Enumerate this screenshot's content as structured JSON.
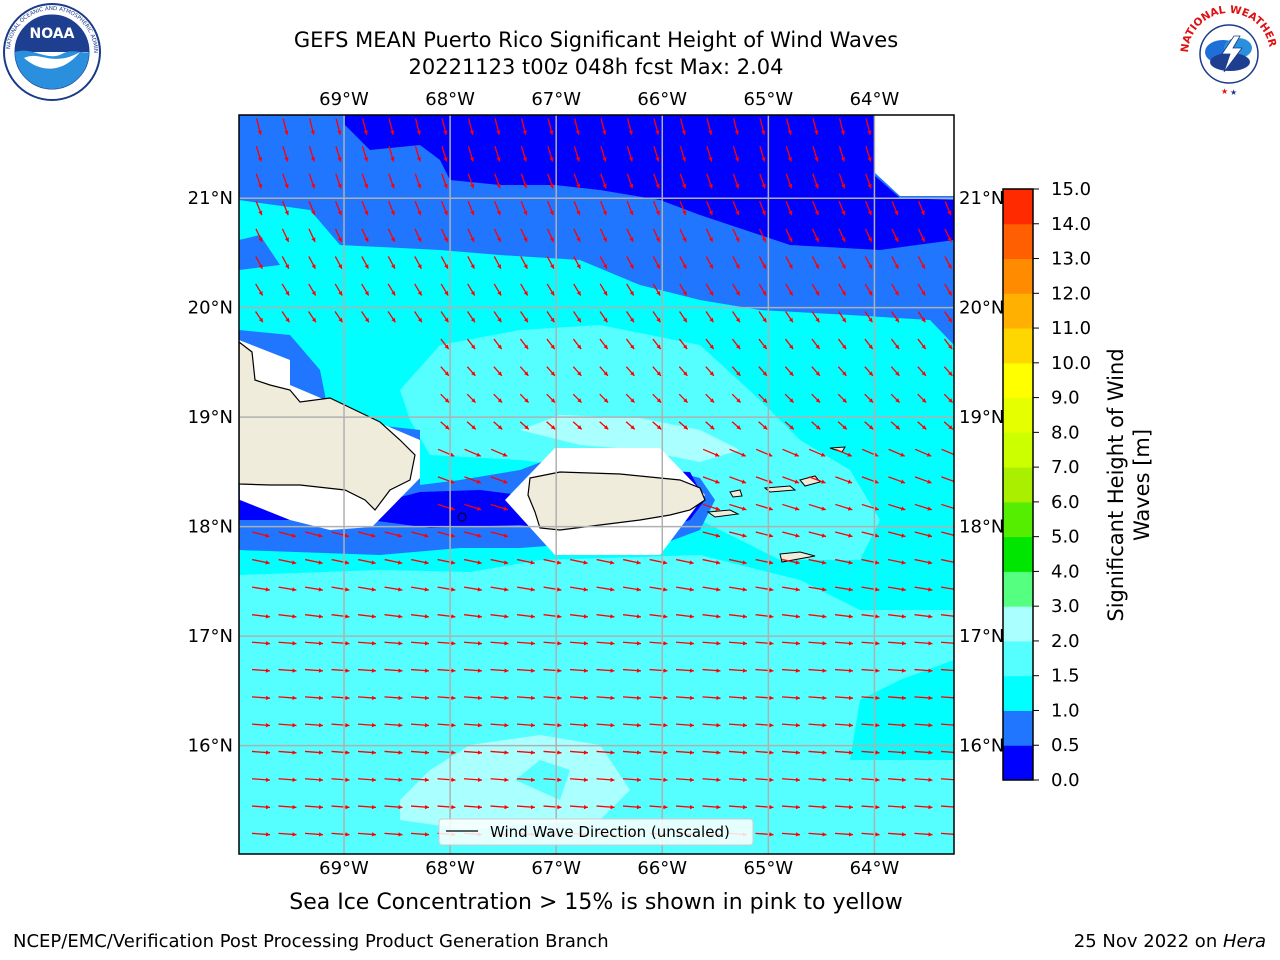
{
  "header": {
    "title_line1": "GEFS MEAN Puerto Rico Significant Height of Wind Waves",
    "title_line2": "20221123 t00z 048h fcst   Max: 2.04"
  },
  "logos": {
    "noaa": {
      "text": "NOAA",
      "ring_text": "NATIONAL OCEANIC AND ATMOSPHERIC ADMINISTRATION · U.S. DEPARTMENT OF COMMERCE ·"
    },
    "nws": {
      "ring_text": "NATIONAL WEATHER SERVICE"
    }
  },
  "map": {
    "lon_range": [
      -69.99,
      -63.25
    ],
    "lat_range": [
      15.01,
      21.76
    ],
    "lon_ticks": [
      {
        "value": -69,
        "label": "69°W"
      },
      {
        "value": -68,
        "label": "68°W"
      },
      {
        "value": -67,
        "label": "67°W"
      },
      {
        "value": -66,
        "label": "66°W"
      },
      {
        "value": -65,
        "label": "65°W"
      },
      {
        "value": -64,
        "label": "64°W"
      }
    ],
    "lat_ticks": [
      {
        "value": 21,
        "label": "21°N"
      },
      {
        "value": 20,
        "label": "20°N"
      },
      {
        "value": 19,
        "label": "19°N"
      },
      {
        "value": 18,
        "label": "18°N"
      },
      {
        "value": 17,
        "label": "17°N"
      },
      {
        "value": 16,
        "label": "16°N"
      }
    ],
    "grid": true,
    "legend": {
      "label": "Wind Wave Direction (unscaled)",
      "placement": "bottom-center"
    },
    "arrow_color": "#ff0000",
    "land_color": "#efecdc"
  },
  "colorbar": {
    "label": "Significant Height of Wind Waves [m]",
    "label_line1": "Significant Height of Wind",
    "label_line2": "Waves [m]",
    "levels": [
      "0.0",
      "0.5",
      "1.0",
      "1.5",
      "2.0",
      "3.0",
      "4.0",
      "5.0",
      "6.0",
      "7.0",
      "8.0",
      "9.0",
      "10.0",
      "11.0",
      "12.0",
      "13.0",
      "14.0",
      "15.0"
    ],
    "colors": [
      "#0000ff",
      "#2176ff",
      "#00ffff",
      "#55ffff",
      "#aaffff",
      "#55ff80",
      "#00e600",
      "#55ee00",
      "#aaee00",
      "#ccff00",
      "#e6ff00",
      "#ffff00",
      "#ffd700",
      "#ffb000",
      "#ff8c00",
      "#ff5f00",
      "#ff2a00"
    ]
  },
  "subcaption": "Sea Ice Concentration > 15% is shown in pink to yellow",
  "footer": {
    "left": "NCEP/EMC/Verification Post Processing Product Generation Branch",
    "right_prefix": "25 Nov 2022 on ",
    "right_host": "Hera"
  }
}
